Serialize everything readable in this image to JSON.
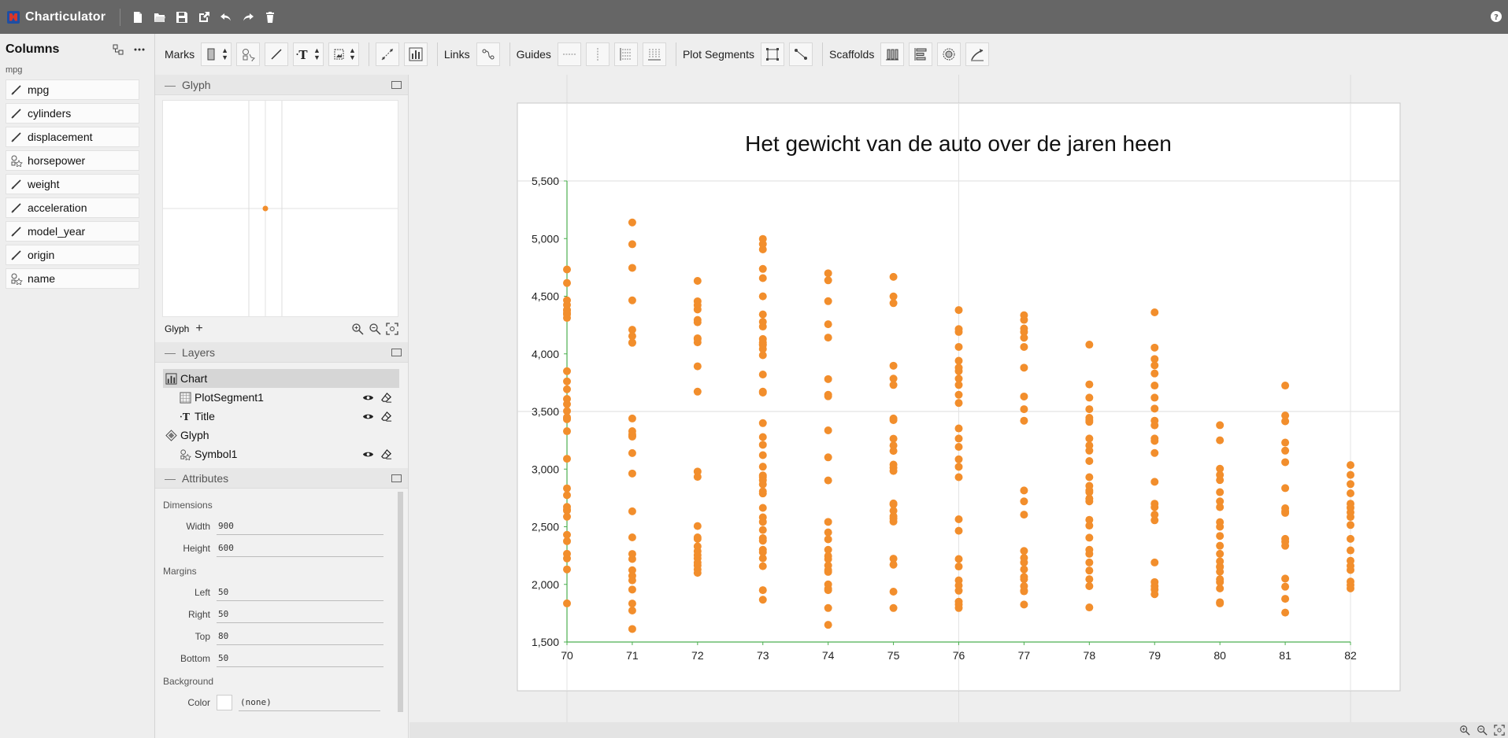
{
  "app": {
    "title": "Charticulator"
  },
  "columns": {
    "title": "Columns",
    "dataset": "mpg",
    "items": [
      {
        "label": "mpg",
        "icon": "numeric-column-icon"
      },
      {
        "label": "cylinders",
        "icon": "numeric-column-icon"
      },
      {
        "label": "displacement",
        "icon": "numeric-column-icon"
      },
      {
        "label": "horsepower",
        "icon": "categorical-column-icon"
      },
      {
        "label": "weight",
        "icon": "numeric-column-icon"
      },
      {
        "label": "acceleration",
        "icon": "numeric-column-icon"
      },
      {
        "label": "model_year",
        "icon": "numeric-column-icon"
      },
      {
        "label": "origin",
        "icon": "numeric-column-icon"
      },
      {
        "label": "name",
        "icon": "categorical-column-icon"
      }
    ]
  },
  "toolbar": {
    "marks": "Marks",
    "links": "Links",
    "guides": "Guides",
    "plot_segments": "Plot Segments",
    "scaffolds": "Scaffolds"
  },
  "glyph_panel": {
    "title": "Glyph",
    "tab": "Glyph",
    "add": "+"
  },
  "layers_panel": {
    "title": "Layers",
    "items": [
      {
        "label": "Chart",
        "icon": "chart-icon",
        "level": 0
      },
      {
        "label": "PlotSegment1",
        "icon": "grid-icon",
        "level": 1
      },
      {
        "label": "Title",
        "icon": "text-icon",
        "level": 1
      },
      {
        "label": "Glyph",
        "icon": "glyph-icon",
        "level": 0
      },
      {
        "label": "Symbol1",
        "icon": "symbol-icon",
        "level": 1
      }
    ]
  },
  "attributes_panel": {
    "title": "Attributes",
    "dimensions": "Dimensions",
    "width_label": "Width",
    "width": "900",
    "height_label": "Height",
    "height": "600",
    "margins": "Margins",
    "left_label": "Left",
    "left": "50",
    "right_label": "Right",
    "right": "50",
    "top_label": "Top",
    "top": "80",
    "bottom_label": "Bottom",
    "bottom": "50",
    "background": "Background",
    "color_label": "Color",
    "color": "(none)"
  },
  "chart_data": {
    "type": "scatter",
    "title": "Het gewicht van de auto over de jaren heen",
    "xlabel": "",
    "ylabel": "",
    "xlim": [
      70,
      82
    ],
    "ylim": [
      1500,
      5500
    ],
    "x_ticks": [
      "70",
      "71",
      "72",
      "73",
      "74",
      "75",
      "76",
      "77",
      "78",
      "79",
      "80",
      "81",
      "82"
    ],
    "y_ticks": [
      "1,500",
      "2,000",
      "2,500",
      "3,000",
      "3,500",
      "4,000",
      "4,500",
      "5,000",
      "5,500"
    ],
    "grid": "vertical lines at 70, 76, 82; horizontal at 3500 and 5500",
    "marker_color": "#f28e2c",
    "axis_color": "#4caf50",
    "points": [
      {
        "x": 70,
        "y": [
          1835,
          2130,
          2225,
          2265,
          2375,
          2430,
          2587,
          2640,
          2648,
          2672,
          2774,
          2833,
          3090,
          3329,
          3433,
          3439,
          3449,
          3504,
          3563,
          3609,
          3693,
          3761,
          3850,
          4312,
          4341,
          4354,
          4376,
          4382,
          4425,
          4464,
          4615,
          4732
        ]
      },
      {
        "x": 71,
        "y": [
          1613,
          1773,
          1834,
          1955,
          2035,
          2074,
          2123,
          2220,
          2264,
          2408,
          2634,
          2962,
          3139,
          3282,
          3288,
          3302,
          3329,
          3439,
          4096,
          4098,
          4154,
          4209,
          4464,
          4746,
          4951,
          5140
        ]
      },
      {
        "x": 72,
        "y": [
          2100,
          2130,
          2164,
          2189,
          2226,
          2254,
          2288,
          2330,
          2395,
          2408,
          2506,
          2933,
          2979,
          3672,
          3892,
          4100,
          4129,
          4135,
          4274,
          4294,
          4385,
          4422,
          4456,
          4633
        ]
      },
      {
        "x": 73,
        "y": [
          1867,
          1950,
          2158,
          2226,
          2279,
          2300,
          2379,
          2401,
          2472,
          2542,
          2582,
          2664,
          2789,
          2807,
          2868,
          2904,
          2933,
          2945,
          3021,
          3121,
          3211,
          3278,
          3399,
          3664,
          3672,
          3821,
          3988,
          4042,
          4077,
          4082,
          4098,
          4129,
          4237,
          4278,
          4342,
          4499,
          4657,
          4737,
          4906,
          4952,
          4997
        ]
      },
      {
        "x": 74,
        "y": [
          1649,
          1795,
          1950,
          1963,
          2000,
          2108,
          2124,
          2164,
          2219,
          2246,
          2300,
          2391,
          2451,
          2542,
          2902,
          3102,
          3336,
          3632,
          3645,
          3781,
          4141,
          4257,
          4457,
          4638,
          4699
        ]
      },
      {
        "x": 75,
        "y": [
          1795,
          1937,
          2171,
          2223,
          2545,
          2572,
          2592,
          2639,
          2694,
          2702,
          2984,
          3012,
          3039,
          3158,
          3205,
          3264,
          3425,
          3439,
          3730,
          3785,
          3897,
          4440,
          4498,
          4668
        ]
      },
      {
        "x": 76,
        "y": [
          1795,
          1825,
          1850,
          1945,
          1990,
          2035,
          2155,
          2220,
          2465,
          2565,
          2930,
          3020,
          3085,
          3193,
          3265,
          3353,
          3574,
          3645,
          3730,
          3785,
          3850,
          3880,
          3940,
          4060,
          4190,
          4215,
          4380
        ]
      },
      {
        "x": 77,
        "y": [
          1825,
          1940,
          1945,
          1985,
          2045,
          2065,
          2130,
          2190,
          2230,
          2290,
          2605,
          2720,
          2815,
          3420,
          3520,
          3630,
          3880,
          4060,
          4140,
          4190,
          4220,
          4295,
          4335
        ]
      },
      {
        "x": 78,
        "y": [
          1800,
          1985,
          2045,
          2120,
          2190,
          2265,
          2300,
          2405,
          2510,
          2560,
          2720,
          2745,
          2800,
          2815,
          2855,
          2930,
          3070,
          3160,
          3205,
          3265,
          3410,
          3425,
          3445,
          3520,
          3620,
          3735,
          4080
        ]
      },
      {
        "x": 79,
        "y": [
          1915,
          1955,
          1985,
          2020,
          2190,
          2556,
          2605,
          2670,
          2700,
          2890,
          3140,
          3245,
          3265,
          3380,
          3420,
          3525,
          3620,
          3725,
          3830,
          3900,
          3955,
          4054,
          4360
        ]
      },
      {
        "x": 80,
        "y": [
          1835,
          1845,
          1965,
          2020,
          2045,
          2110,
          2150,
          2155,
          2200,
          2265,
          2335,
          2420,
          2500,
          2540,
          2670,
          2720,
          2800,
          2905,
          2950,
          3003,
          3250,
          3381
        ]
      },
      {
        "x": 81,
        "y": [
          1755,
          1875,
          1980,
          2050,
          2335,
          2370,
          2395,
          2620,
          2635,
          2660,
          2835,
          3060,
          3160,
          3230,
          3415,
          3465,
          3725
        ]
      },
      {
        "x": 82,
        "y": [
          1965,
          1995,
          2025,
          2125,
          2160,
          2205,
          2295,
          2395,
          2515,
          2585,
          2625,
          2665,
          2700,
          2790,
          2870,
          2950,
          3035
        ]
      }
    ]
  }
}
